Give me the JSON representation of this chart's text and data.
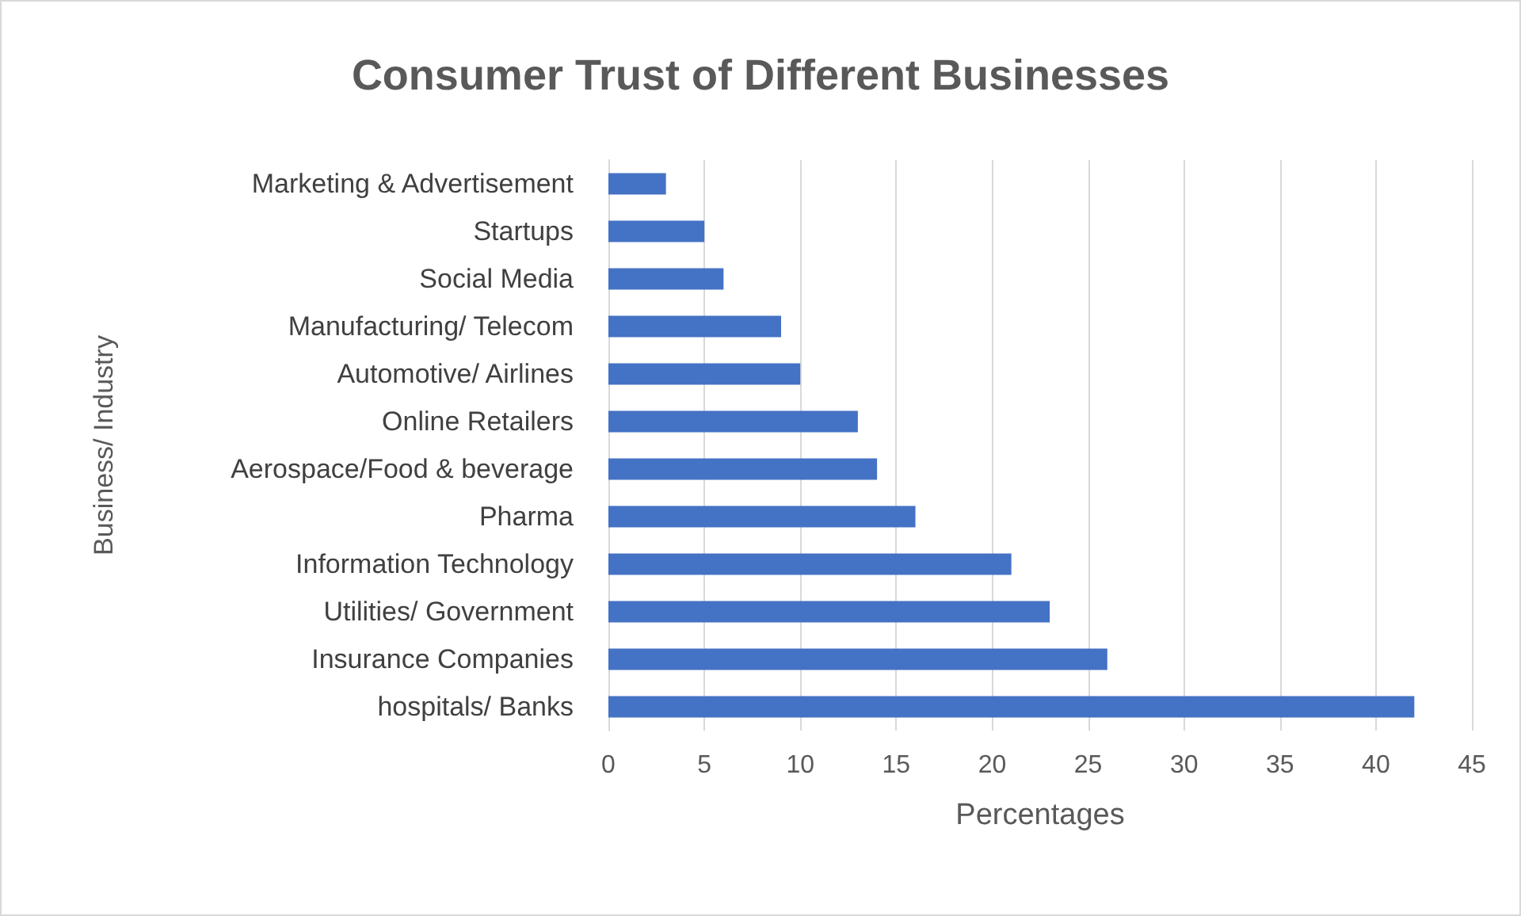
{
  "chart_data": {
    "type": "bar",
    "orientation": "horizontal",
    "title": "Consumer Trust of Different Businesses",
    "xlabel": "Percentages",
    "ylabel": "Business/ Industry",
    "categories": [
      "Marketing & Advertisement",
      "Startups",
      "Social Media",
      "Manufacturing/ Telecom",
      "Automotive/ Airlines",
      "Online Retailers",
      "Aerospace/Food & beverage",
      "Pharma",
      "Information Technology",
      "Utilities/ Government",
      "Insurance Companies",
      "hospitals/ Banks"
    ],
    "values": [
      3,
      5,
      6,
      9,
      10,
      13,
      14,
      16,
      21,
      23,
      26,
      42
    ],
    "color": "#4472c4",
    "xlim": [
      0,
      45
    ],
    "xticks": [
      0,
      5,
      10,
      15,
      20,
      25,
      30,
      35,
      40,
      45
    ],
    "grid": "x"
  }
}
